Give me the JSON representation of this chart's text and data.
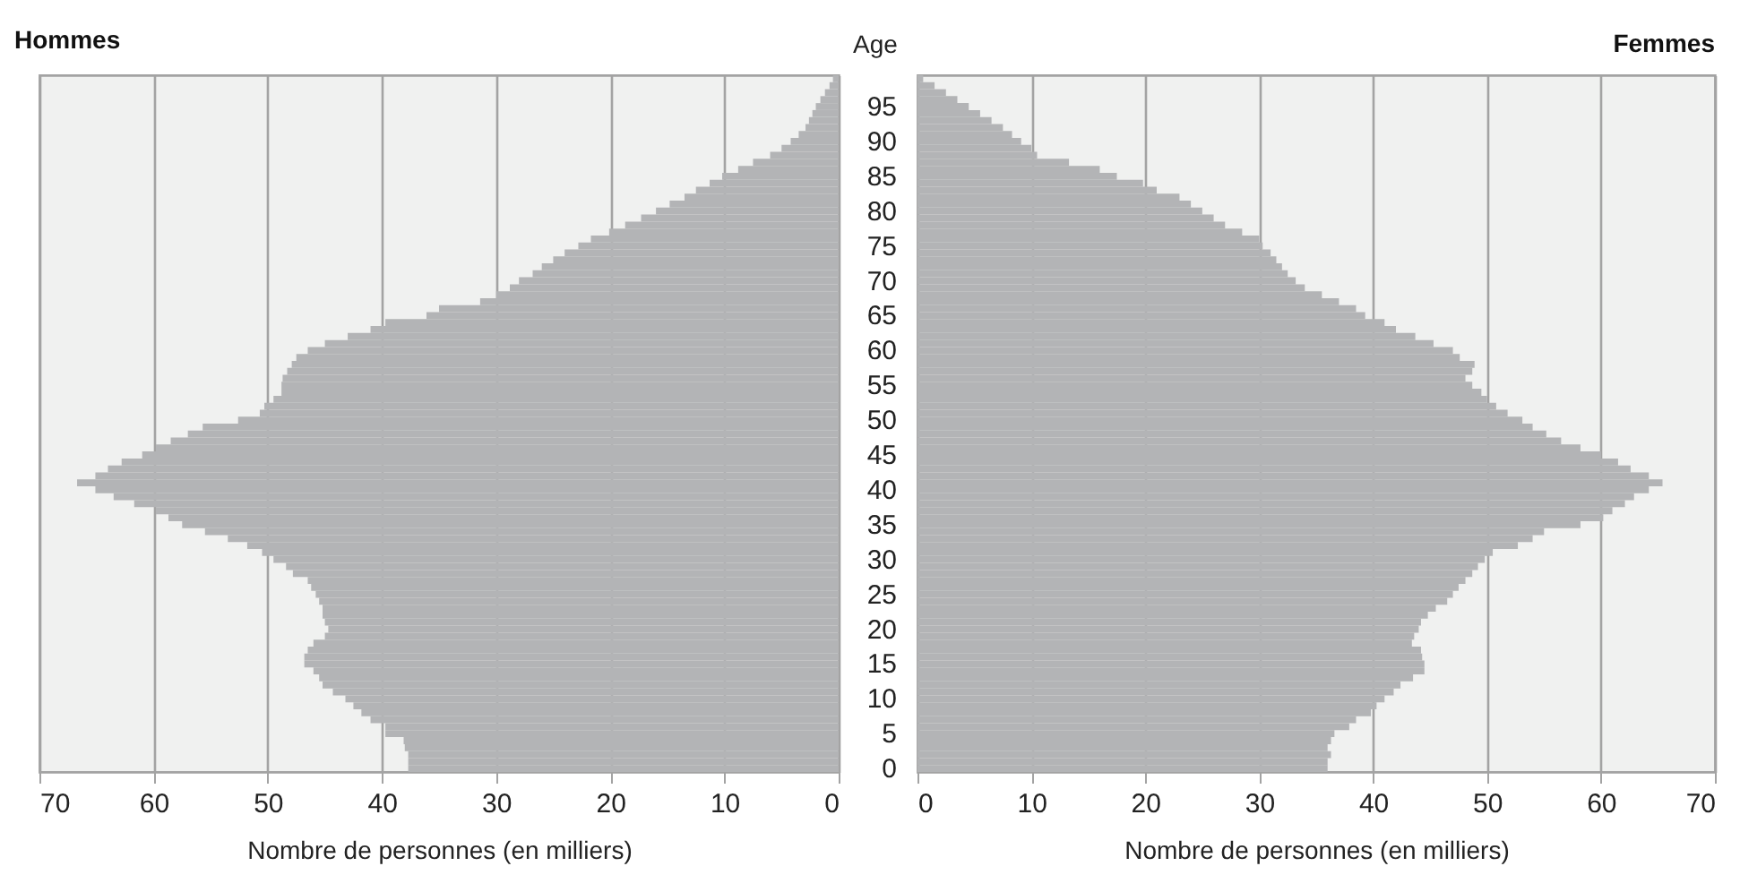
{
  "chart_data": [
    {
      "type": "bar",
      "orientation": "horizontal",
      "title": "Hommes",
      "xlabel": "Nombre de personnes (en milliers)",
      "ylabel": "Age",
      "color": "#b3b4b6",
      "xlim": [
        70,
        0
      ],
      "xticks": [
        70,
        60,
        50,
        40,
        30,
        20,
        10,
        0
      ],
      "grid": "x",
      "categories": [
        null,
        null,
        null,
        null,
        "95",
        null,
        null,
        null,
        null,
        "90",
        null,
        null,
        null,
        null,
        "85",
        null,
        null,
        null,
        null,
        "80",
        null,
        null,
        null,
        null,
        "75",
        null,
        null,
        null,
        null,
        "70",
        null,
        null,
        null,
        null,
        "65",
        null,
        null,
        null,
        null,
        "60",
        null,
        null,
        null,
        null,
        "55",
        null,
        null,
        null,
        null,
        "50",
        null,
        null,
        null,
        null,
        "45",
        null,
        null,
        null,
        null,
        "40",
        null,
        null,
        null,
        null,
        "35",
        null,
        null,
        null,
        null,
        "30",
        null,
        null,
        null,
        null,
        "25",
        null,
        null,
        null,
        null,
        "20",
        null,
        null,
        null,
        null,
        "15",
        null,
        null,
        null,
        null,
        "10",
        null,
        null,
        null,
        null,
        "5",
        null,
        null,
        null,
        null,
        "0"
      ],
      "values": [
        0.5,
        0.8,
        1.2,
        1.6,
        2,
        2.3,
        2.6,
        2.9,
        3.5,
        4.2,
        5,
        6,
        7.5,
        8.8,
        10.2,
        11.3,
        12.5,
        13.5,
        14.8,
        16,
        17.3,
        18.7,
        20.1,
        21.7,
        22.8,
        24,
        25,
        26,
        26.8,
        28,
        28.8,
        30,
        31.4,
        35,
        36.1,
        39.7,
        41,
        43,
        45,
        46.5,
        47.5,
        47.9,
        48.3,
        48.7,
        48.8,
        48.8,
        49.5,
        50.3,
        50.7,
        52.6,
        55.7,
        57,
        58.5,
        59.8,
        61,
        62.8,
        64,
        65.1,
        66.7,
        65.1,
        63.5,
        61.7,
        59.8,
        58.7,
        57.5,
        55.5,
        53.5,
        51.8,
        50.5,
        49.5,
        48.4,
        47.8,
        46.5,
        46.2,
        45.8,
        45.5,
        45.2,
        45.2,
        45,
        44.7,
        45,
        46,
        46.5,
        46.8,
        46.8,
        46,
        45.5,
        45.2,
        44.3,
        43.2,
        42.5,
        41.8,
        41,
        39.7,
        39.7,
        38.1,
        38,
        37.7,
        37.7,
        37.7
      ]
    },
    {
      "type": "bar",
      "orientation": "horizontal",
      "title": "Femmes",
      "xlabel": "Nombre de personnes (en milliers)",
      "color": "#b3b4b6",
      "xlim": [
        0,
        70
      ],
      "xticks": [
        0,
        10,
        20,
        30,
        40,
        50,
        60,
        70
      ],
      "grid": "x",
      "tick_labels": "x",
      "categories": [
        null,
        null,
        null,
        null,
        "95",
        null,
        null,
        null,
        null,
        "90",
        null,
        null,
        null,
        null,
        "85",
        null,
        null,
        null,
        null,
        "80",
        null,
        null,
        null,
        null,
        "75",
        null,
        null,
        null,
        null,
        "70",
        null,
        null,
        null,
        null,
        "65",
        null,
        null,
        null,
        null,
        "60",
        null,
        null,
        null,
        null,
        "55",
        null,
        null,
        null,
        null,
        "50",
        null,
        null,
        null,
        null,
        "45",
        null,
        null,
        null,
        null,
        "40",
        null,
        null,
        null,
        null,
        "35",
        null,
        null,
        null,
        null,
        "30",
        null,
        null,
        null,
        null,
        "25",
        null,
        null,
        null,
        null,
        "20",
        null,
        null,
        null,
        null,
        "15",
        null,
        null,
        null,
        null,
        "10",
        null,
        null,
        null,
        null,
        "5",
        null,
        null,
        null,
        null,
        "0"
      ],
      "values": [
        0.5,
        1.5,
        2.5,
        3.5,
        4.5,
        5.5,
        6.5,
        7.5,
        8.3,
        9.1,
        10,
        10.5,
        13.3,
        16,
        17.5,
        19.8,
        21,
        23,
        24,
        25,
        26,
        27,
        28.5,
        30,
        30.3,
        31,
        31.5,
        32,
        32.5,
        33.2,
        34,
        35.5,
        37,
        38.5,
        39.3,
        41,
        42,
        43.7,
        45.3,
        47,
        47.6,
        48.9,
        48.7,
        48.1,
        48.7,
        49.5,
        50,
        50.8,
        51.8,
        53.1,
        54,
        55.2,
        56.5,
        58.2,
        60,
        61.5,
        62.6,
        64.2,
        65.4,
        64.2,
        62.9,
        62.1,
        61,
        60.2,
        58.2,
        55,
        54,
        52.7,
        50.5,
        49.8,
        49.2,
        48.7,
        48.1,
        47.5,
        47,
        46.5,
        45.5,
        44.8,
        44.2,
        44,
        43.6,
        43.4,
        44.2,
        44.3,
        44.5,
        44.5,
        43.5,
        42.4,
        41.8,
        41,
        40.3,
        39.8,
        38.5,
        37.9,
        36.6,
        36.3,
        36,
        36.3,
        36,
        36
      ]
    }
  ]
}
